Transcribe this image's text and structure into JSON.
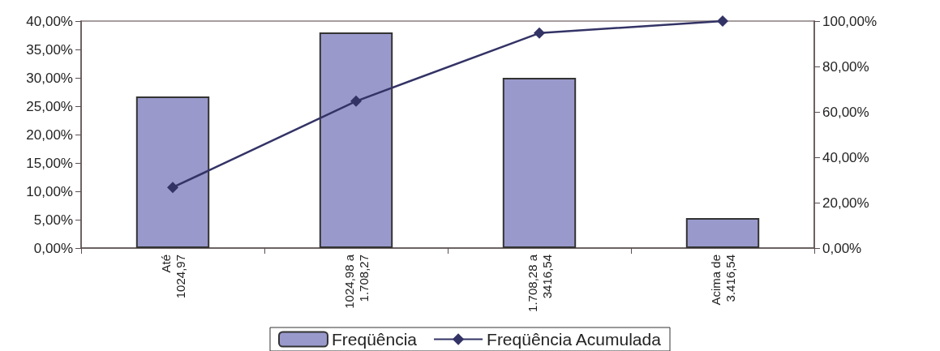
{
  "chart_data": {
    "type": "bar",
    "categories": [
      "Até 1024,97",
      "1024,98 a 1.708,27",
      "1.708,28 a 3416,54",
      "Acima de 3.416,54"
    ],
    "series": [
      {
        "name": "Freqüência",
        "color": "#9999cc",
        "values": [
          26.7,
          38.0,
          30.0,
          5.3
        ]
      },
      {
        "name": "Freqüência Acumulada",
        "type": "line",
        "axis": "y2",
        "color": "#333366",
        "values": [
          26.7,
          64.7,
          94.7,
          100
        ]
      }
    ],
    "ylim": [
      0,
      40
    ],
    "yticks": [
      {
        "value": 0,
        "label": "0,00%"
      },
      {
        "value": 5,
        "label": "5,00%"
      },
      {
        "value": 10,
        "label": "10,00%"
      },
      {
        "value": 15,
        "label": "15,00%"
      },
      {
        "value": 20,
        "label": "20,00%"
      },
      {
        "value": 25,
        "label": "25,00%"
      },
      {
        "value": 30,
        "label": "30,00%"
      },
      {
        "value": 35,
        "label": "35,00%"
      },
      {
        "value": 40,
        "label": "40,00%"
      }
    ],
    "y2lim": [
      0,
      100
    ],
    "y2ticks": [
      {
        "value": 0,
        "label": "0,00%"
      },
      {
        "value": 20,
        "label": "20,00%"
      },
      {
        "value": 40,
        "label": "40,00%"
      },
      {
        "value": 60,
        "label": "60,00%"
      },
      {
        "value": 80,
        "label": "80,00%"
      },
      {
        "value": 100,
        "label": "100,00%"
      }
    ],
    "grid": false,
    "legend": "bottom",
    "marker": "diamond",
    "line_style": "solid"
  }
}
